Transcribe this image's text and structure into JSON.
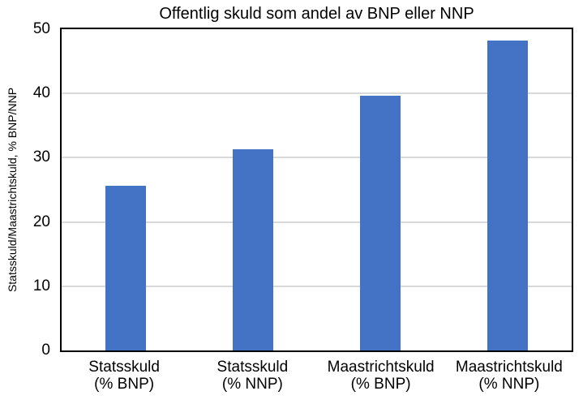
{
  "chart_data": {
    "type": "bar",
    "title": "Offentlig skuld som andel av BNP eller NNP",
    "xlabel": "",
    "ylabel": "Statsskuld/Maastrichtskuld, % BNP/NNP",
    "categories": [
      "Statsskuld\n(% BNP)",
      "Statsskuld\n(% NNP)",
      "Maastrichtskuld\n(% BNP)",
      "Maastrichtskuld\n(% NNP)"
    ],
    "values": [
      25.6,
      31.3,
      39.7,
      48.2
    ],
    "ylim": [
      0,
      50
    ],
    "yticks": [
      0,
      10,
      20,
      30,
      40,
      50
    ],
    "grid": true,
    "legend": "none",
    "bar_color": "#4472C4",
    "gridline_color": "#D9D9D9",
    "frame_color": "#000000",
    "background_color": "#FFFFFF"
  }
}
